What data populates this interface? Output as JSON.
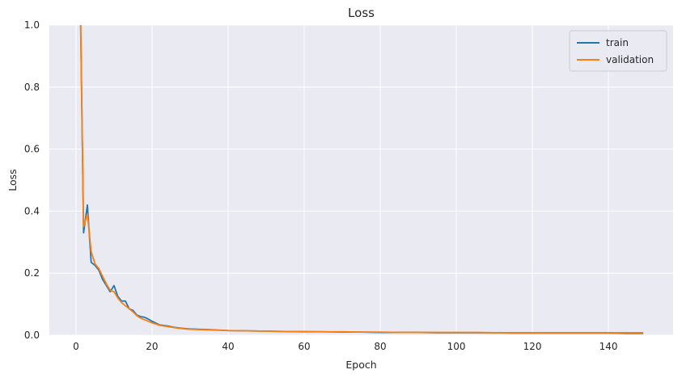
{
  "chart_data": {
    "type": "line",
    "title": "Loss",
    "xlabel": "Epoch",
    "ylabel": "Loss",
    "xlim": [
      -7,
      157
    ],
    "ylim": [
      0,
      1.0
    ],
    "xticks": [
      0,
      20,
      40,
      60,
      80,
      100,
      120,
      140
    ],
    "yticks": [
      0.0,
      0.2,
      0.4,
      0.6,
      0.8,
      1.0
    ],
    "xtick_labels": [
      "0",
      "20",
      "40",
      "60",
      "80",
      "100",
      "120",
      "140"
    ],
    "ytick_labels": [
      "0.0",
      "0.2",
      "0.4",
      "0.6",
      "0.8",
      "1.0"
    ],
    "grid": true,
    "legend_position": "top-right",
    "series": [
      {
        "name": "train",
        "color": "#1f77b4",
        "x": [
          1,
          2,
          3,
          4,
          5,
          6,
          7,
          8,
          9,
          10,
          11,
          12,
          13,
          14,
          15,
          16,
          17,
          18,
          19,
          20,
          22,
          24,
          26,
          28,
          30,
          35,
          40,
          45,
          50,
          55,
          60,
          65,
          70,
          75,
          80,
          85,
          90,
          95,
          100,
          105,
          110,
          115,
          120,
          125,
          130,
          135,
          140,
          145,
          149
        ],
        "y": [
          1.2,
          0.33,
          0.42,
          0.235,
          0.225,
          0.21,
          0.18,
          0.16,
          0.14,
          0.16,
          0.125,
          0.11,
          0.11,
          0.085,
          0.08,
          0.065,
          0.06,
          0.058,
          0.052,
          0.045,
          0.033,
          0.03,
          0.025,
          0.022,
          0.02,
          0.018,
          0.015,
          0.014,
          0.013,
          0.012,
          0.011,
          0.011,
          0.01,
          0.01,
          0.009,
          0.009,
          0.009,
          0.008,
          0.008,
          0.008,
          0.008,
          0.007,
          0.007,
          0.007,
          0.007,
          0.007,
          0.007,
          0.006,
          0.006
        ]
      },
      {
        "name": "validation",
        "color": "#ff7f0e",
        "x": [
          1,
          2,
          3,
          4,
          5,
          6,
          7,
          8,
          9,
          10,
          11,
          12,
          13,
          14,
          15,
          16,
          17,
          18,
          19,
          20,
          22,
          24,
          26,
          28,
          30,
          35,
          40,
          45,
          50,
          55,
          60,
          65,
          70,
          75,
          80,
          85,
          90,
          95,
          100,
          105,
          110,
          115,
          120,
          125,
          130,
          135,
          140,
          145,
          149
        ],
        "y": [
          1.2,
          0.35,
          0.39,
          0.27,
          0.23,
          0.215,
          0.19,
          0.165,
          0.145,
          0.14,
          0.12,
          0.105,
          0.095,
          0.085,
          0.075,
          0.063,
          0.055,
          0.05,
          0.045,
          0.04,
          0.032,
          0.028,
          0.024,
          0.021,
          0.019,
          0.017,
          0.015,
          0.014,
          0.013,
          0.012,
          0.012,
          0.011,
          0.011,
          0.01,
          0.01,
          0.009,
          0.009,
          0.009,
          0.009,
          0.009,
          0.008,
          0.008,
          0.008,
          0.008,
          0.008,
          0.008,
          0.008,
          0.008,
          0.008
        ]
      }
    ]
  }
}
